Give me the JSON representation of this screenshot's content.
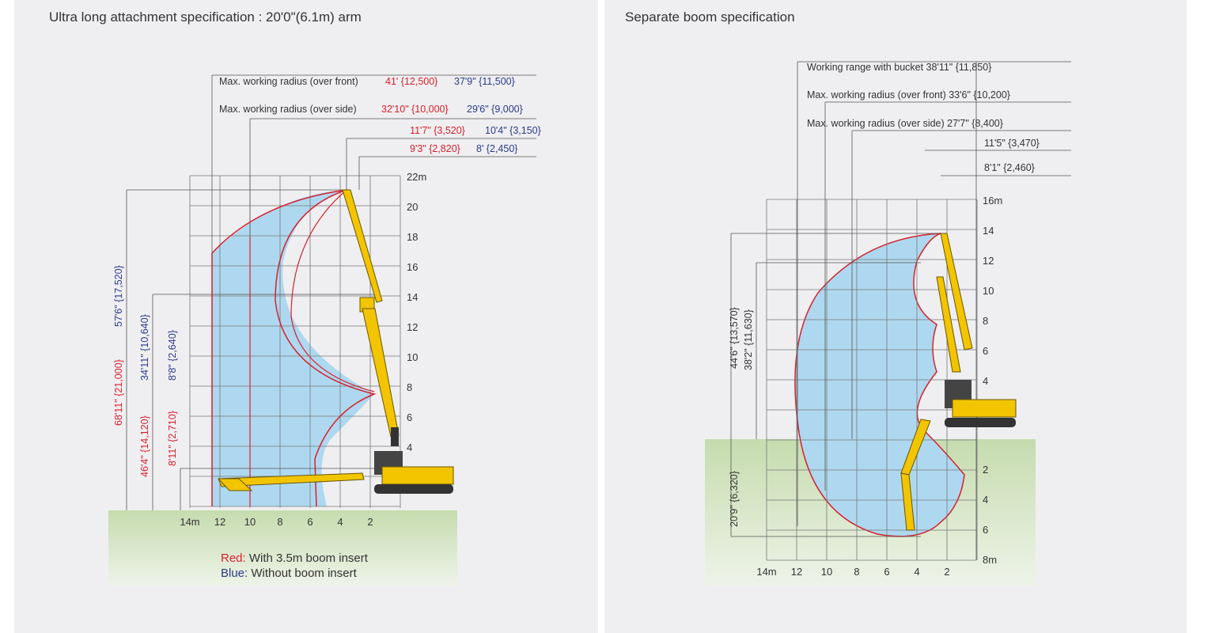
{
  "left": {
    "title": "Ultra long attachment specification : 20'0\"(6.1m) arm",
    "front_label": "Max. working radius (over front)",
    "front_red": "41' {12,500}",
    "front_blue": "37'9\" {11,500}",
    "side_label": "Max. working radius (over side)",
    "side_red": "32'10\" {10,000}",
    "side_blue": "29'6\" {9,000}",
    "r3_red": "11'7\" {3,520}",
    "r3_blue": "10'4\" {3,150}",
    "r4_red": "9'3\" {2,820}",
    "r4_blue": "8' {2,450}",
    "h1_red": "68'11\" {21,000}",
    "h1_blue": "57'6\" {17,520}",
    "h2_red": "46'4\" {14,120}",
    "h2_blue": "34'11\" {10,640}",
    "h3_red": "8'11\" {2,710}",
    "h3_blue": "8'8\" {2,640}",
    "y_ticks": [
      "22m",
      "20",
      "18",
      "16",
      "14",
      "12",
      "10",
      "8",
      "6",
      "4"
    ],
    "x_ticks": [
      "14m",
      "12",
      "10",
      "8",
      "6",
      "4",
      "2"
    ],
    "legend_red_key": "Red:",
    "legend_red_text": "With 3.5m boom insert",
    "legend_blue_key": "Blue:",
    "legend_blue_text": "Without boom insert"
  },
  "right": {
    "title": "Separate boom specification",
    "range_label": "Working range with bucket 38'11\" {11,850}",
    "front_label": "Max. working radius (over front)  33'6\" {10,200}",
    "side_label": "Max. working radius (over side)  27'7\" {8,400}",
    "r3": "11'5\" {3,470}",
    "r4": "8'1\" {2,460}",
    "h1": "44'6\" {13,570}",
    "h2": "38'2\" {11,630}",
    "depth": "20'9\" {6,320}",
    "y_ticks_up": [
      "16m",
      "14",
      "12",
      "10",
      "8",
      "6",
      "4"
    ],
    "y_ticks_down": [
      "2",
      "4",
      "6",
      "8m"
    ],
    "x_ticks": [
      "14m",
      "12",
      "10",
      "8",
      "6",
      "4",
      "2"
    ]
  },
  "colors": {
    "red": "#d7202d",
    "blue": "#2a3a8a",
    "envelope_fill": "#aed8ef",
    "machine_yellow": "#f2c500",
    "ground_green": "#c5dcae"
  }
}
